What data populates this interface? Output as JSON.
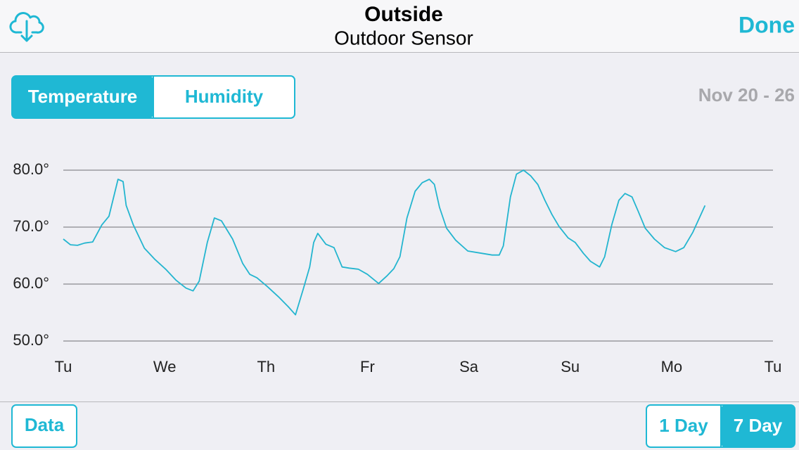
{
  "header": {
    "title": "Outside",
    "subtitle": "Outdoor Sensor",
    "done": "Done"
  },
  "segments": {
    "items": [
      "Temperature",
      "Humidity"
    ],
    "selected": 0
  },
  "date_range": "Nov 20 - 26",
  "chart_data": {
    "type": "line",
    "x": [
      0,
      0.07,
      0.14,
      0.21,
      0.29,
      0.38,
      0.45,
      0.54,
      0.59,
      0.62,
      0.69,
      0.8,
      0.9,
      1.01,
      1.11,
      1.21,
      1.28,
      1.34,
      1.42,
      1.49,
      1.56,
      1.67,
      1.77,
      1.84,
      1.91,
      2.01,
      2.12,
      2.22,
      2.29,
      2.37,
      2.43,
      2.47,
      2.51,
      2.59,
      2.67,
      2.75,
      2.82,
      2.91,
      3.0,
      3.11,
      3.19,
      3.26,
      3.32,
      3.39,
      3.47,
      3.54,
      3.61,
      3.66,
      3.71,
      3.78,
      3.87,
      3.99,
      4.13,
      4.23,
      4.3,
      4.34,
      4.41,
      4.47,
      4.54,
      4.61,
      4.68,
      4.75,
      4.82,
      4.89,
      4.98,
      5.05,
      5.13,
      5.2,
      5.29,
      5.34,
      5.41,
      5.48,
      5.54,
      5.61,
      5.67,
      5.74,
      5.83,
      5.93,
      6.04,
      6.12,
      6.21,
      6.33
    ],
    "series": [
      {
        "color": "#23b5cf",
        "values": [
          67.9,
          66.9,
          66.8,
          67.2,
          67.4,
          70.4,
          71.9,
          78.4,
          78.0,
          73.8,
          70.4,
          66.3,
          64.4,
          62.6,
          60.7,
          59.3,
          58.8,
          60.5,
          67.3,
          71.6,
          71.1,
          67.9,
          63.6,
          61.7,
          61.1,
          59.6,
          57.8,
          56.0,
          54.6,
          59.3,
          63.0,
          67.3,
          68.9,
          67.0,
          66.4,
          63.0,
          62.8,
          62.6,
          61.7,
          60.1,
          61.4,
          62.7,
          64.8,
          71.6,
          76.3,
          77.8,
          78.4,
          77.5,
          73.5,
          69.8,
          67.7,
          65.8,
          65.4,
          65.1,
          65.1,
          66.7,
          75.3,
          79.3,
          80.0,
          79.0,
          77.5,
          74.7,
          72.2,
          70.1,
          68.1,
          67.3,
          65.4,
          64.0,
          63.0,
          64.8,
          70.4,
          74.7,
          75.9,
          75.3,
          72.8,
          69.8,
          67.9,
          66.4,
          65.7,
          66.4,
          69.1,
          73.8
        ]
      }
    ],
    "xlim": [
      0,
      7
    ],
    "xticks": [
      {
        "value": 0,
        "label": "Tu"
      },
      {
        "value": 1,
        "label": "We"
      },
      {
        "value": 2,
        "label": "Th"
      },
      {
        "value": 3,
        "label": "Fr"
      },
      {
        "value": 4,
        "label": "Sa"
      },
      {
        "value": 5,
        "label": "Su"
      },
      {
        "value": 6,
        "label": "Mo"
      },
      {
        "value": 7,
        "label": "Tu"
      }
    ],
    "ylim": [
      50,
      80
    ],
    "yticks": [
      {
        "value": 50,
        "label": "50.0°"
      },
      {
        "value": 60,
        "label": "60.0°"
      },
      {
        "value": 70,
        "label": "70.0°"
      },
      {
        "value": 80,
        "label": "80.0°"
      }
    ],
    "grid": true
  },
  "footer": {
    "data": "Data",
    "ranges": [
      "1 Day",
      "7 Day"
    ],
    "selected": 1
  }
}
